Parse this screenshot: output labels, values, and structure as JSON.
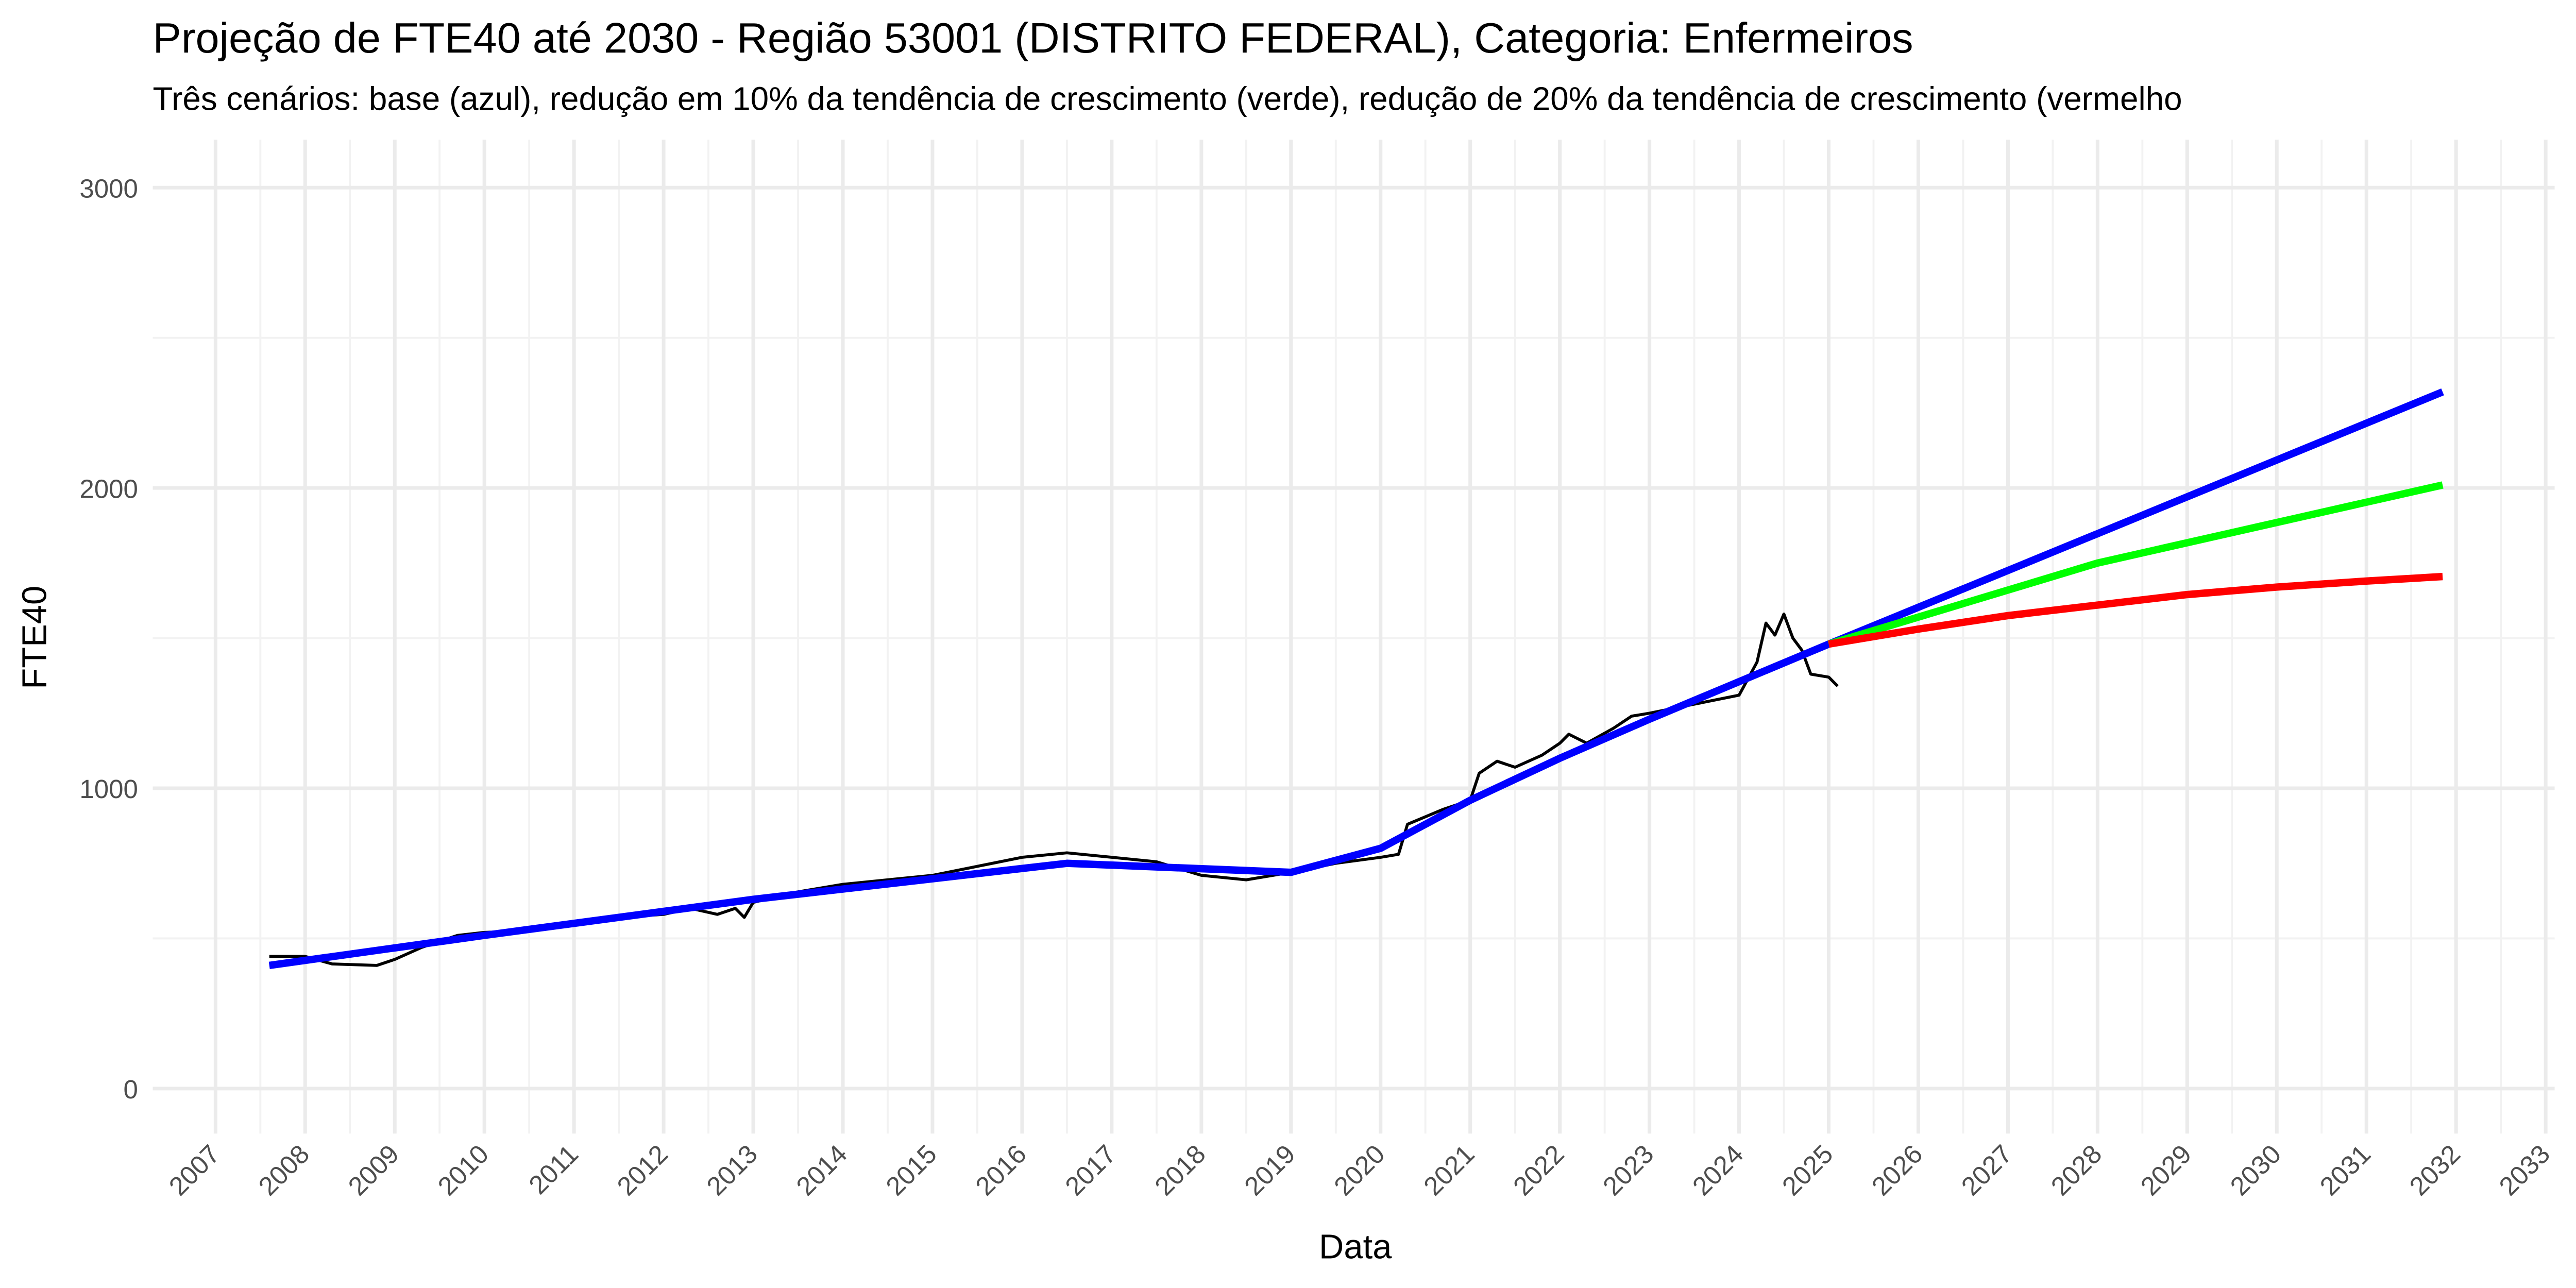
{
  "chart_data": {
    "type": "line",
    "title": "Projeção de FTE40 até 2030 - Região 53001 (DISTRITO FEDERAL), Categoria: Enfermeiros",
    "subtitle": "Três cenários: base (azul), redução em 10% da tendência de crescimento (verde), redução de 20% da tendência de crescimento (vermelho",
    "x_label": "Data",
    "y_label": "FTE40",
    "xlim": [
      2006.3,
      2033.1
    ],
    "xticks": [
      2007,
      2008,
      2009,
      2010,
      2011,
      2012,
      2013,
      2014,
      2015,
      2016,
      2017,
      2018,
      2019,
      2020,
      2021,
      2022,
      2023,
      2024,
      2025,
      2026,
      2027,
      2028,
      2029,
      2030,
      2031,
      2032,
      2033
    ],
    "ylim": [
      -150,
      3160
    ],
    "yticks": [
      0,
      1000,
      2000,
      3000
    ],
    "grid": true,
    "series": [
      {
        "color": "#000000",
        "width": 1.8,
        "x": [
          2007.6,
          2008,
          2008.3,
          2008.8,
          2009,
          2009.3,
          2009.7,
          2010,
          2010.5,
          2011,
          2011.5,
          2012,
          2012.3,
          2012.6,
          2012.8,
          2012.9,
          2013,
          2013.5,
          2014,
          2014.5,
          2015,
          2015.5,
          2016,
          2016.5,
          2017,
          2017.5,
          2018,
          2018.5,
          2019,
          2019.5,
          2020,
          2020.2,
          2020.3,
          2020.7,
          2021,
          2021.1,
          2021.3,
          2021.5,
          2021.8,
          2022,
          2022.1,
          2022.3,
          2022.6,
          2022.8,
          2023,
          2023.5,
          2024,
          2024.2,
          2024.3,
          2024.4,
          2024.5,
          2024.6,
          2024.7,
          2024.8,
          2025,
          2025.1
        ],
        "values": [
          440,
          440,
          415,
          410,
          430,
          470,
          510,
          520,
          525,
          555,
          570,
          580,
          600,
          580,
          600,
          570,
          620,
          655,
          680,
          695,
          710,
          740,
          770,
          785,
          770,
          755,
          710,
          695,
          720,
          750,
          770,
          780,
          880,
          930,
          960,
          1050,
          1090,
          1070,
          1110,
          1150,
          1180,
          1150,
          1200,
          1240,
          1250,
          1280,
          1310,
          1420,
          1550,
          1510,
          1580,
          1500,
          1460,
          1380,
          1370,
          1340
        ]
      },
      {
        "color": "#0000ff",
        "width": 4.5,
        "x": [
          2007.6,
          2010,
          2013,
          2016.5,
          2019,
          2020,
          2021,
          2022,
          2023,
          2025,
          2031.85
        ],
        "values": [
          410,
          510,
          630,
          750,
          720,
          800,
          960,
          1100,
          1230,
          1480,
          2320
        ]
      },
      {
        "color": "#00ff00",
        "width": 4.5,
        "x": [
          2025,
          2028,
          2031.85
        ],
        "values": [
          1480,
          1750,
          2010
        ]
      },
      {
        "color": "#ff0000",
        "width": 4.5,
        "x": [
          2025,
          2026,
          2027,
          2028,
          2029,
          2030,
          2031,
          2031.85
        ],
        "values": [
          1480,
          1530,
          1575,
          1610,
          1645,
          1670,
          1690,
          1705
        ]
      }
    ]
  }
}
